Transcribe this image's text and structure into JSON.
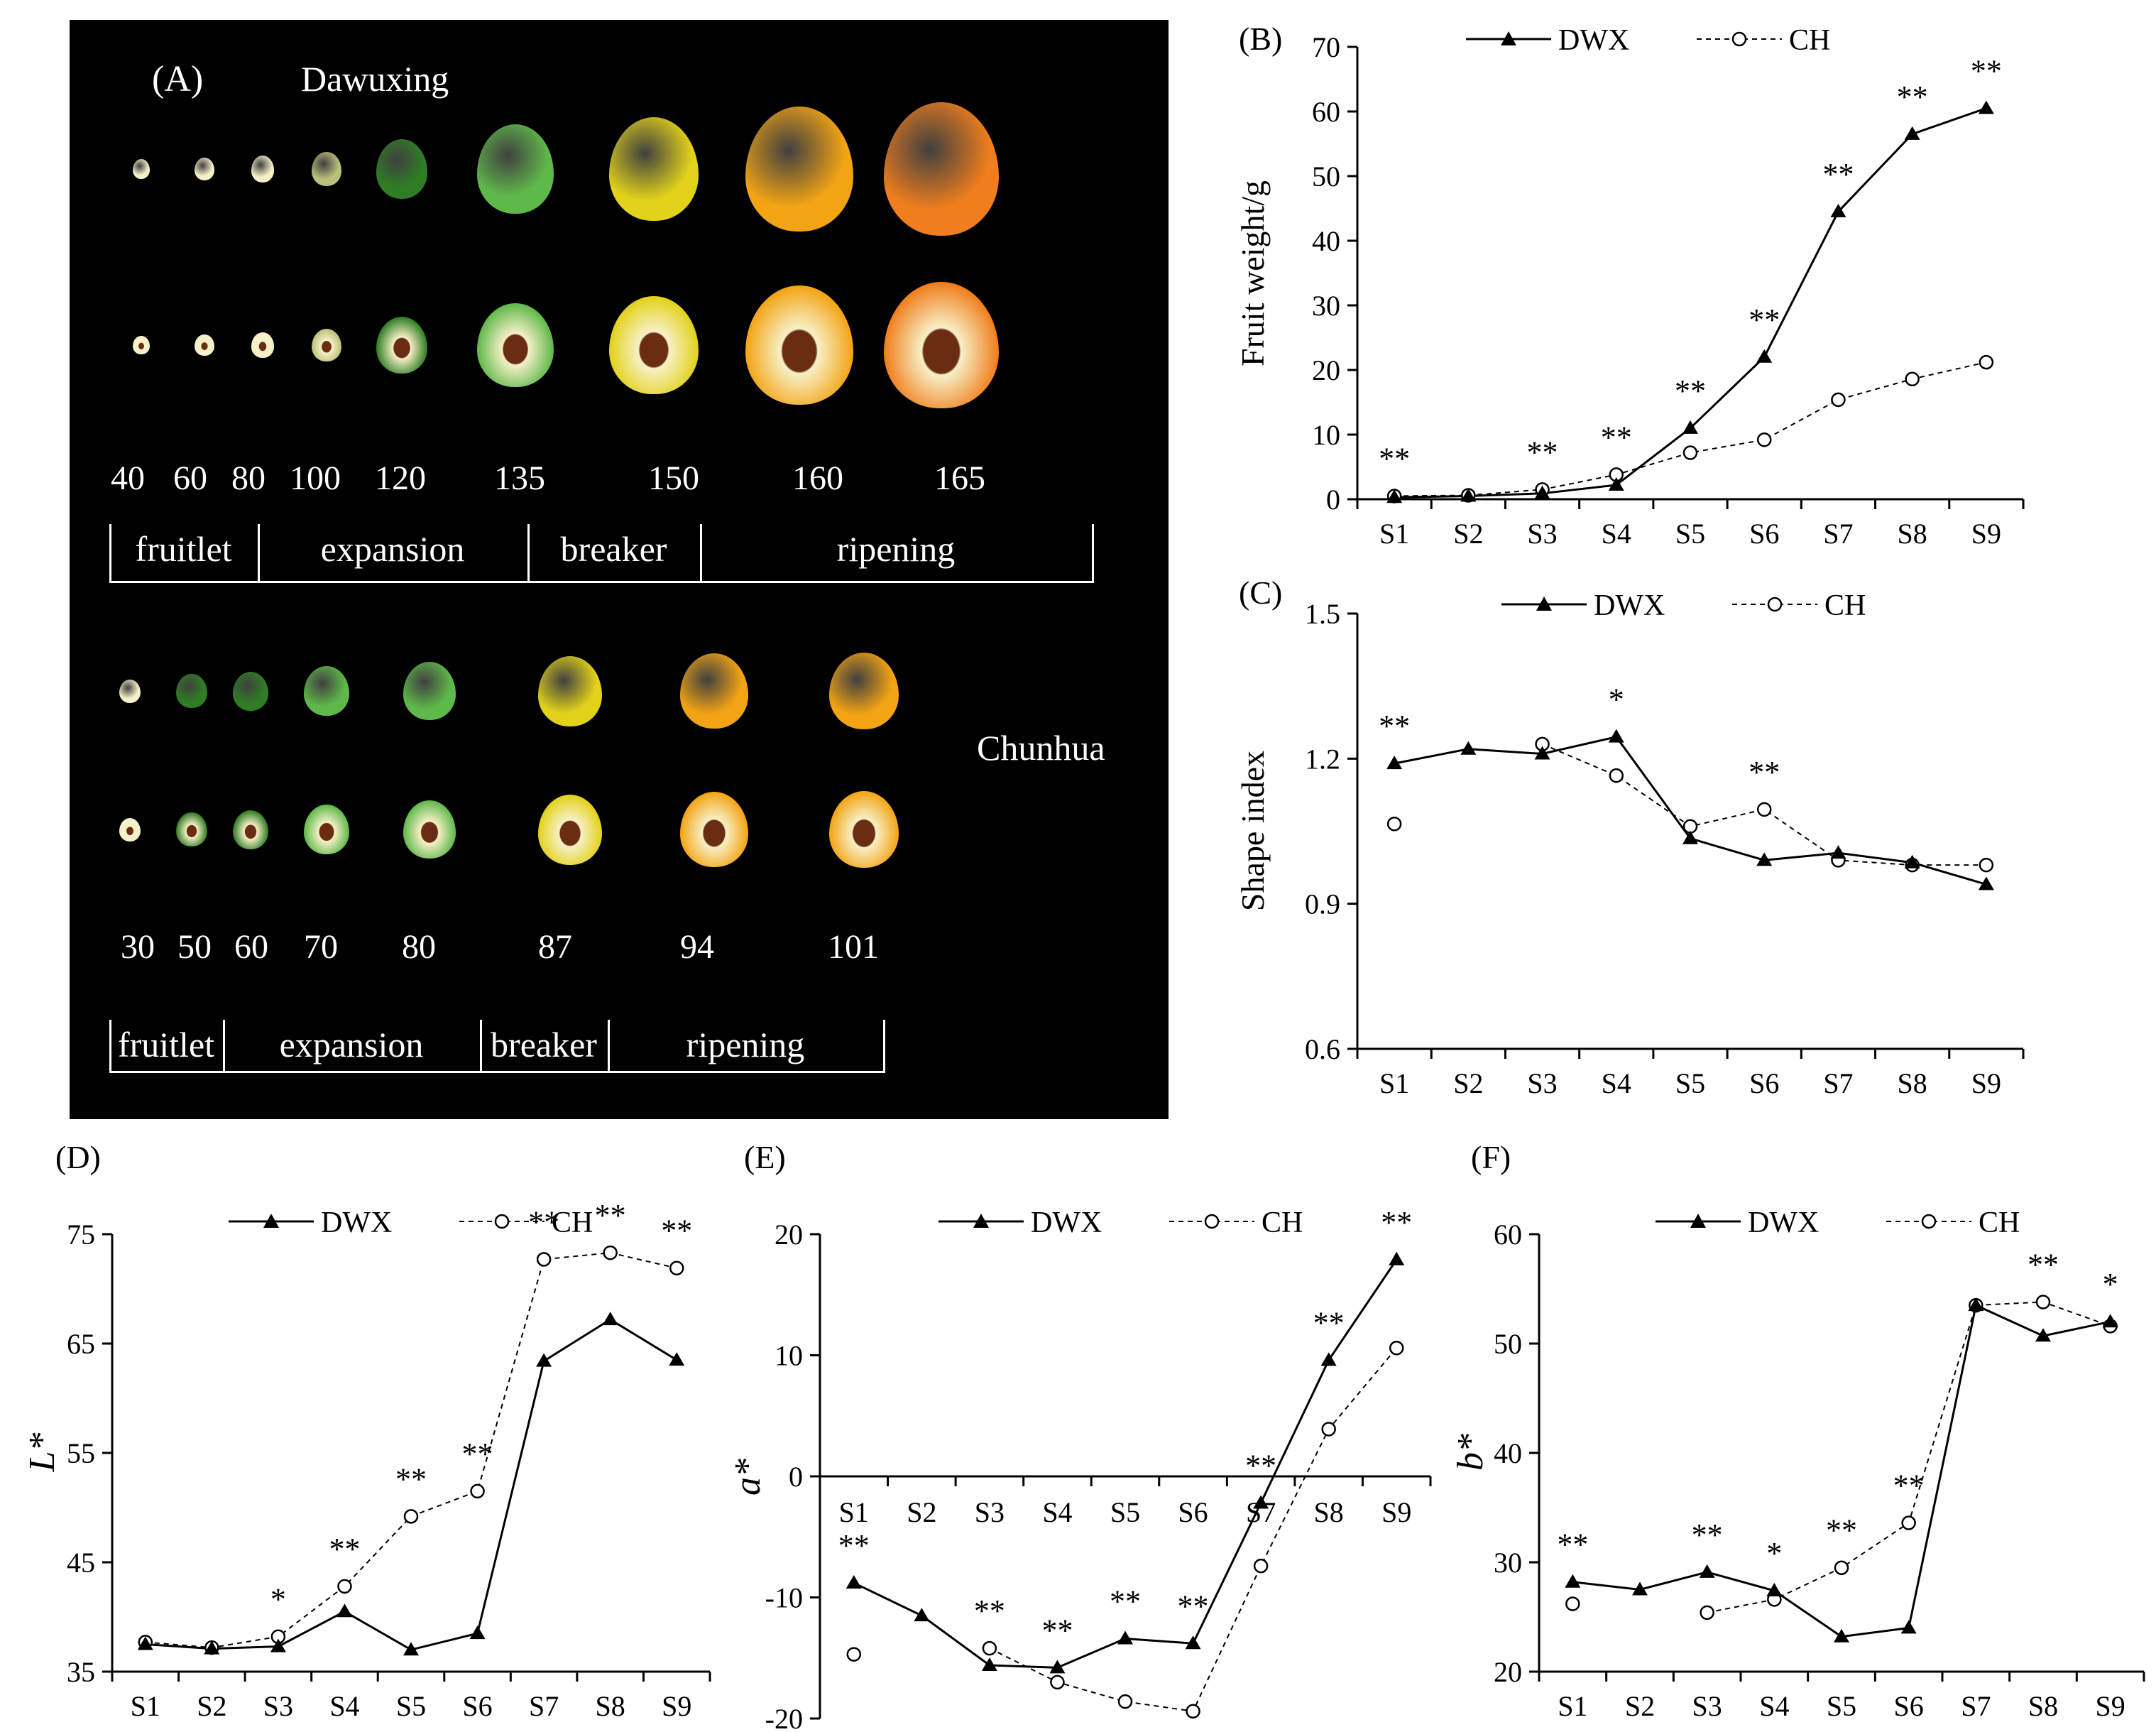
{
  "panel_a": {
    "label": "(A)",
    "dawuxing": {
      "name": "Dawuxing",
      "days": [
        "40",
        "60",
        "80",
        "100",
        "120",
        "135",
        "150",
        "160",
        "165"
      ],
      "stages": [
        "fruitlet",
        "expansion",
        "breaker",
        "ripening"
      ]
    },
    "chunhua": {
      "name": "Chunhua",
      "days": [
        "30",
        "50",
        "60",
        "70",
        "80",
        "87",
        "94",
        "101"
      ],
      "stages": [
        "fruitlet",
        "expansion",
        "breaker",
        "ripening"
      ]
    },
    "colors": {
      "green_dark": "#2f7d24",
      "green_light": "#5fb84a",
      "yellow": "#e2d21a",
      "orange": "#f3a414",
      "orange_deep": "#f07e1c",
      "seed": "#6b2d12",
      "flesh": "#f7f0c8"
    }
  },
  "styles": {
    "dwx_color": "#000000",
    "ch_color": "#000000"
  },
  "chart_data": [
    {
      "id": "B",
      "panel_label": "(B)",
      "type": "line",
      "title": "",
      "xlabel": "",
      "ylabel": "Fruit weight/g",
      "categories": [
        "S1",
        "S2",
        "S3",
        "S4",
        "S5",
        "S6",
        "S7",
        "S8",
        "S9"
      ],
      "ylim": [
        0,
        70
      ],
      "yticks": [
        "0",
        "10",
        "20",
        "30",
        "40",
        "50",
        "60",
        "70"
      ],
      "series": [
        {
          "name": "DWX",
          "values": [
            0.3,
            0.5,
            0.9,
            2.2,
            11,
            22,
            44.5,
            56.5,
            60.5
          ]
        },
        {
          "name": "CH",
          "values": [
            0.5,
            0.6,
            1.5,
            3.8,
            7.2,
            9.2,
            15.4,
            18.6,
            21.2
          ]
        }
      ],
      "significance": [
        "**",
        "",
        "**",
        "**",
        "**",
        "**",
        "**",
        "**",
        "**"
      ]
    },
    {
      "id": "C",
      "panel_label": "(C)",
      "type": "line",
      "title": "",
      "xlabel": "",
      "ylabel": "Shape index",
      "categories": [
        "S1",
        "S2",
        "S3",
        "S4",
        "S5",
        "S6",
        "S7",
        "S8",
        "S9"
      ],
      "ylim": [
        0.6,
        1.5
      ],
      "yticks": [
        "0.6",
        "0.9",
        "1.2",
        "1.5"
      ],
      "series": [
        {
          "name": "DWX",
          "values": [
            1.19,
            1.22,
            1.21,
            1.245,
            1.035,
            0.99,
            1.005,
            0.985,
            0.94
          ]
        },
        {
          "name": "CH",
          "values": [
            1.065,
            null,
            1.23,
            1.165,
            1.06,
            1.095,
            0.99,
            0.98,
            0.98
          ]
        }
      ],
      "significance": [
        "**",
        "",
        "",
        "*",
        "",
        "**",
        "",
        "",
        ""
      ]
    },
    {
      "id": "D",
      "panel_label": "(D)",
      "type": "line",
      "title": "",
      "xlabel": "",
      "ylabel": "L*",
      "categories": [
        "S1",
        "S2",
        "S3",
        "S4",
        "S5",
        "S6",
        "S7",
        "S8",
        "S9"
      ],
      "ylim": [
        35,
        75
      ],
      "yticks": [
        "35",
        "45",
        "55",
        "65",
        "75"
      ],
      "series": [
        {
          "name": "DWX",
          "values": [
            37.5,
            37.1,
            37.3,
            40.5,
            37.0,
            38.5,
            63.4,
            67.2,
            63.5
          ]
        },
        {
          "name": "CH",
          "values": [
            37.7,
            37.2,
            38.2,
            42.8,
            49.2,
            51.5,
            72.7,
            73.3,
            71.9
          ]
        }
      ],
      "significance": [
        "",
        "",
        "*",
        "**",
        "**",
        "**",
        "**",
        "**",
        "**"
      ]
    },
    {
      "id": "E",
      "panel_label": "(E)",
      "type": "line",
      "title": "",
      "xlabel": "",
      "ylabel": "a*",
      "categories": [
        "S1",
        "S2",
        "S3",
        "S4",
        "S5",
        "S6",
        "S7",
        "S8",
        "S9"
      ],
      "ylim": [
        -20,
        20
      ],
      "yticks": [
        "-20",
        "-10",
        "0",
        "10",
        "20"
      ],
      "series": [
        {
          "name": "DWX",
          "values": [
            -8.8,
            -11.5,
            -15.6,
            -15.8,
            -13.4,
            -13.8,
            -2.2,
            9.6,
            17.9
          ]
        },
        {
          "name": "CH",
          "values": [
            -14.7,
            null,
            -14.2,
            -17.0,
            -18.6,
            -19.4,
            -7.4,
            3.9,
            10.6
          ]
        }
      ],
      "significance": [
        "**",
        "",
        "**",
        "**",
        "**",
        "**",
        "**",
        "**",
        "**"
      ]
    },
    {
      "id": "F",
      "panel_label": "(F)",
      "type": "line",
      "title": "",
      "xlabel": "",
      "ylabel": "b*",
      "categories": [
        "S1",
        "S2",
        "S3",
        "S4",
        "S5",
        "S6",
        "S7",
        "S8",
        "S9"
      ],
      "ylim": [
        20,
        60
      ],
      "yticks": [
        "20",
        "30",
        "40",
        "50",
        "60"
      ],
      "series": [
        {
          "name": "DWX",
          "values": [
            28.2,
            27.5,
            29.1,
            27.4,
            23.2,
            24.0,
            53.5,
            50.7,
            52.0
          ]
        },
        {
          "name": "CH",
          "values": [
            26.2,
            null,
            25.4,
            26.6,
            29.5,
            33.6,
            53.5,
            53.8,
            51.6
          ]
        }
      ],
      "significance": [
        "**",
        "",
        "**",
        "*",
        "**",
        "**",
        "",
        "**",
        "*"
      ]
    }
  ]
}
